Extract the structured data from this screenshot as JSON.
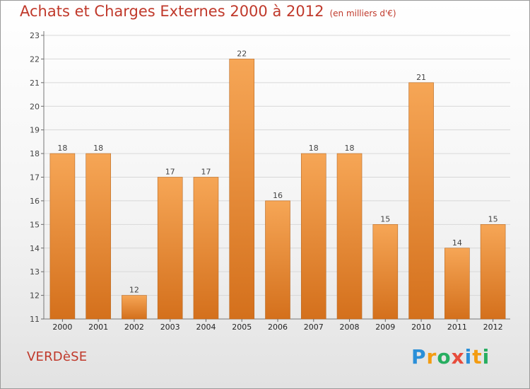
{
  "header": {
    "title": "Achats et Charges Externes 2000 à 2012",
    "unit": "(en milliers d'€)"
  },
  "footer": {
    "commune": "VERDèSE",
    "brand": "Proxiti",
    "brand_letters": [
      {
        "ch": "P",
        "color": "#2a8fd8"
      },
      {
        "ch": "r",
        "color": "#f39c12"
      },
      {
        "ch": "o",
        "color": "#27ae60"
      },
      {
        "ch": "x",
        "color": "#e74c3c"
      },
      {
        "ch": "i",
        "color": "#2a8fd8"
      },
      {
        "ch": "t",
        "color": "#f39c12"
      },
      {
        "ch": "i",
        "color": "#27ae60"
      }
    ]
  },
  "colors": {
    "title": "#c0392b",
    "bar_top": "#f6a656",
    "bar_bottom": "#d4701c"
  },
  "chart_data": {
    "type": "bar",
    "title": "Achats et Charges Externes 2000 à 2012",
    "subtitle": "(en milliers d'€)",
    "xlabel": "",
    "ylabel": "",
    "categories": [
      "2000",
      "2001",
      "2002",
      "2003",
      "2004",
      "2005",
      "2006",
      "2007",
      "2008",
      "2009",
      "2010",
      "2011",
      "2012"
    ],
    "values": [
      18,
      18,
      12,
      17,
      17,
      22,
      16,
      18,
      18,
      15,
      21,
      14,
      15
    ],
    "ylim": [
      11,
      23
    ],
    "yticks": [
      11,
      12,
      13,
      14,
      15,
      16,
      17,
      18,
      19,
      20,
      21,
      22,
      23
    ],
    "grid": true,
    "legend": "none"
  }
}
